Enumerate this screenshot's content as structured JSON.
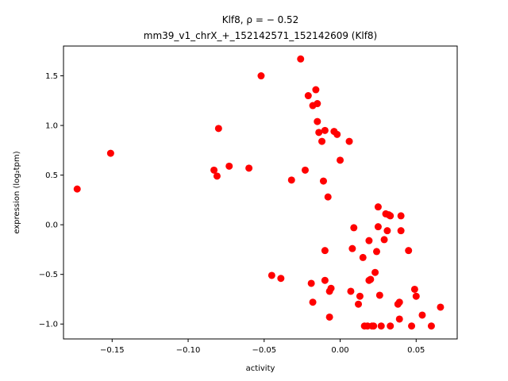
{
  "chart_data": {
    "type": "scatter",
    "title_line1": "Klf8, ρ = − 0.52",
    "title_line2": "mm39_v1_chrX_+_152142571_152142609 (Klf8)",
    "xlabel": "activity",
    "ylabel": "expression (log₂tpm)",
    "xlim": [
      -0.182,
      0.077
    ],
    "ylim": [
      -1.15,
      1.8
    ],
    "xticks": [
      -0.15,
      -0.1,
      -0.05,
      0.0,
      0.05
    ],
    "xtick_labels": [
      "−0.15",
      "−0.10",
      "−0.05",
      "0.00",
      "0.05"
    ],
    "yticks": [
      -1.0,
      -0.5,
      0.0,
      0.5,
      1.0,
      1.5
    ],
    "ytick_labels": [
      "−1.0",
      "−0.5",
      "0.0",
      "0.5",
      "1.0",
      "1.5"
    ],
    "grid": false,
    "marker_color": "#ff0000",
    "points": [
      [
        -0.173,
        0.36
      ],
      [
        -0.151,
        0.72
      ],
      [
        -0.083,
        0.55
      ],
      [
        -0.081,
        0.49
      ],
      [
        -0.08,
        0.97
      ],
      [
        -0.073,
        0.59
      ],
      [
        -0.06,
        0.57
      ],
      [
        -0.052,
        1.5
      ],
      [
        -0.045,
        -0.51
      ],
      [
        -0.039,
        -0.54
      ],
      [
        -0.032,
        0.45
      ],
      [
        -0.026,
        1.67
      ],
      [
        -0.023,
        0.55
      ],
      [
        -0.021,
        1.3
      ],
      [
        -0.019,
        -0.59
      ],
      [
        -0.018,
        -0.78
      ],
      [
        -0.018,
        1.2
      ],
      [
        -0.016,
        1.36
      ],
      [
        -0.015,
        1.22
      ],
      [
        -0.015,
        1.04
      ],
      [
        -0.014,
        0.93
      ],
      [
        -0.012,
        0.84
      ],
      [
        -0.011,
        0.44
      ],
      [
        -0.01,
        0.95
      ],
      [
        -0.01,
        -0.26
      ],
      [
        -0.01,
        -0.56
      ],
      [
        -0.008,
        0.28
      ],
      [
        -0.007,
        -0.93
      ],
      [
        -0.007,
        -0.67
      ],
      [
        -0.006,
        -0.64
      ],
      [
        -0.004,
        0.94
      ],
      [
        -0.002,
        0.91
      ],
      [
        0.0,
        0.65
      ],
      [
        0.006,
        0.84
      ],
      [
        0.007,
        -0.67
      ],
      [
        0.008,
        -0.24
      ],
      [
        0.009,
        -0.03
      ],
      [
        0.012,
        -0.8
      ],
      [
        0.013,
        -0.72
      ],
      [
        0.015,
        -0.33
      ],
      [
        0.016,
        -1.02
      ],
      [
        0.018,
        -1.02
      ],
      [
        0.019,
        -0.56
      ],
      [
        0.019,
        -0.16
      ],
      [
        0.02,
        -0.55
      ],
      [
        0.021,
        -1.02
      ],
      [
        0.022,
        -1.02
      ],
      [
        0.023,
        -0.48
      ],
      [
        0.024,
        -0.27
      ],
      [
        0.025,
        0.18
      ],
      [
        0.025,
        -0.02
      ],
      [
        0.026,
        -0.71
      ],
      [
        0.027,
        -1.02
      ],
      [
        0.029,
        -0.15
      ],
      [
        0.03,
        0.11
      ],
      [
        0.031,
        -0.06
      ],
      [
        0.032,
        0.1
      ],
      [
        0.033,
        0.09
      ],
      [
        0.033,
        -1.02
      ],
      [
        0.038,
        -0.8
      ],
      [
        0.039,
        -0.78
      ],
      [
        0.039,
        -0.95
      ],
      [
        0.04,
        0.09
      ],
      [
        0.04,
        -0.06
      ],
      [
        0.045,
        -0.26
      ],
      [
        0.047,
        -1.02
      ],
      [
        0.049,
        -0.65
      ],
      [
        0.05,
        -0.72
      ],
      [
        0.054,
        -0.91
      ],
      [
        0.06,
        -1.02
      ],
      [
        0.066,
        -0.83
      ]
    ]
  }
}
